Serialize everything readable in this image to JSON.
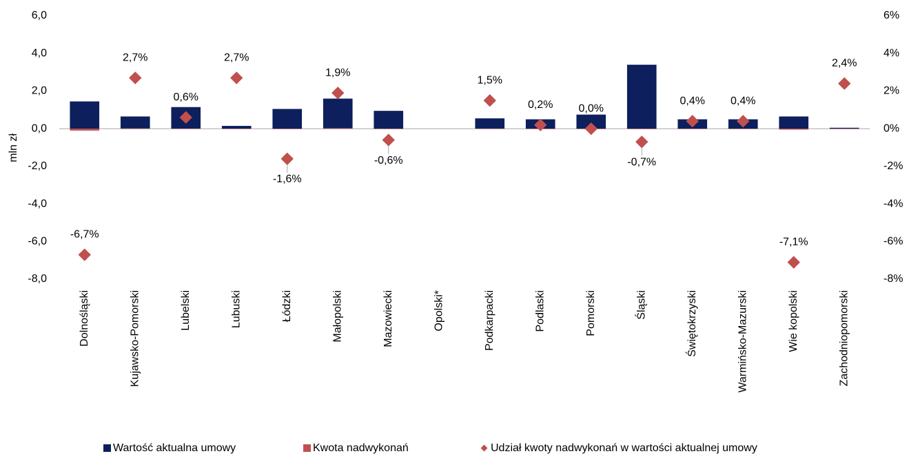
{
  "chart_data": {
    "type": "bar",
    "y_axis_label": "mln zł",
    "categories": [
      "Dolnośląski",
      "Kujawsko-Pomorski",
      "Lubelski",
      "Lubuski",
      "Łódzki",
      "Małopolski",
      "Mazowiecki",
      "Opolski*",
      "Podkarpacki",
      "Podlaski",
      "Pomorski",
      "Śląski",
      "Świętokrzyski",
      "Warmińsko-Mazurski",
      "Wie kopolski",
      "Zachodniopomorski"
    ],
    "series": [
      {
        "name": "Wartość aktualna umowy",
        "color": "#0d1f5c",
        "type": "bar",
        "values": [
          1.45,
          0.65,
          1.15,
          0.15,
          1.05,
          1.6,
          0.95,
          null,
          0.55,
          0.5,
          0.75,
          3.4,
          0.5,
          0.5,
          0.65,
          0.05
        ]
      },
      {
        "name": "Kwota nadwykonań",
        "color": "#c0504d",
        "type": "bar",
        "values": [
          -0.1,
          0.02,
          0.01,
          0.004,
          -0.02,
          0.03,
          -0.01,
          null,
          0.01,
          0.001,
          0,
          -0.02,
          0.002,
          0.002,
          -0.05,
          0.001
        ]
      },
      {
        "name": "Udział kwoty nadwykonań w wartości aktualnej umowy",
        "color": "#c0504d",
        "type": "scatter",
        "axis": "y2",
        "values": [
          -6.7,
          2.7,
          0.6,
          2.7,
          -1.6,
          1.9,
          -0.6,
          null,
          1.5,
          0.2,
          0.0,
          -0.7,
          0.4,
          0.4,
          -7.1,
          2.4
        ],
        "value_labels": [
          "-6,7%",
          "2,7%",
          "0,6%",
          "2,7%",
          "-1,6%",
          "1,9%",
          "-0,6%",
          null,
          "1,5%",
          "0,2%",
          "0,0%",
          "-0,7%",
          "0,4%",
          "0,4%",
          "-7,1%",
          "2,4%"
        ]
      }
    ],
    "ylim": [
      -8,
      6
    ],
    "yticks": [
      {
        "value": -8,
        "label": "-8,0"
      },
      {
        "value": -6,
        "label": "-6,0"
      },
      {
        "value": -4,
        "label": "-4,0"
      },
      {
        "value": -2,
        "label": "-2,0"
      },
      {
        "value": 0,
        "label": "0,0"
      },
      {
        "value": 2,
        "label": "2,0"
      },
      {
        "value": 4,
        "label": "4,0"
      },
      {
        "value": 6,
        "label": "6,0"
      }
    ],
    "y2lim": [
      -8,
      6
    ],
    "y2ticks": [
      {
        "value": -8,
        "label": "-8%"
      },
      {
        "value": -6,
        "label": "-6%"
      },
      {
        "value": -4,
        "label": "-4%"
      },
      {
        "value": -2,
        "label": "-2%"
      },
      {
        "value": 0,
        "label": "0%"
      },
      {
        "value": 2,
        "label": "2%"
      },
      {
        "value": 4,
        "label": "4%"
      },
      {
        "value": 6,
        "label": "6%"
      }
    ],
    "grid": false,
    "legend": "bottom"
  }
}
